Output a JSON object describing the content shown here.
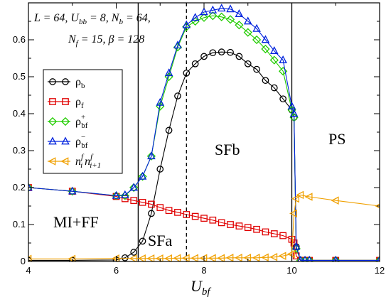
{
  "chart_data": {
    "type": "line",
    "xlabel": {
      "base": "U",
      "sub": "bf"
    },
    "xlim": [
      4,
      12
    ],
    "ylim": [
      0,
      0.7
    ],
    "xticks": [
      4,
      6,
      8,
      10,
      12
    ],
    "yticks": [
      0,
      0.1,
      0.2,
      0.3,
      0.4,
      0.5,
      0.6
    ],
    "annotation": {
      "line1": "L = 64, U",
      "line1_sub": "bb",
      "line1_b": " = 8, N",
      "line1_sub2": "b",
      "line1_c": " = 64,",
      "line2": "N",
      "line2_sub": "f",
      "line2_b": " = 15, β = 128"
    },
    "regions": [
      {
        "label": "MI+FF"
      },
      {
        "label": "SFa"
      },
      {
        "label": "SFb"
      },
      {
        "label": "PS"
      }
    ],
    "boundaries": [
      {
        "x": 6.5,
        "style": "solid"
      },
      {
        "x": 7.6,
        "style": "dashed"
      },
      {
        "x": 10.0,
        "style": "solid"
      }
    ],
    "legend_position": "left-middle",
    "series": [
      {
        "key": "rho_b",
        "name": "ρ",
        "name_sub": "b",
        "color": "#000000",
        "marker": "circle",
        "x": [
          4,
          5,
          6,
          6.2,
          6.4,
          6.6,
          6.8,
          7.0,
          7.2,
          7.4,
          7.6,
          7.8,
          8.0,
          8.2,
          8.4,
          8.6,
          8.8,
          9.0,
          9.2,
          9.4,
          9.6,
          9.8,
          10.0,
          10.05,
          10.1,
          10.2,
          10.3,
          10.4,
          11,
          12
        ],
        "y": [
          0.003,
          0.003,
          0.004,
          0.01,
          0.025,
          0.055,
          0.13,
          0.25,
          0.355,
          0.448,
          0.51,
          0.535,
          0.555,
          0.565,
          0.567,
          0.566,
          0.555,
          0.535,
          0.52,
          0.49,
          0.47,
          0.44,
          0.41,
          0.39,
          0.04,
          0.003,
          0.003,
          0.003,
          0.003,
          0.003
        ]
      },
      {
        "key": "rho_f",
        "name": "ρ",
        "name_sub": "f",
        "color": "#e00000",
        "marker": "square",
        "x": [
          4,
          5,
          6,
          6.2,
          6.4,
          6.6,
          6.8,
          7.0,
          7.2,
          7.4,
          7.6,
          7.8,
          8.0,
          8.2,
          8.4,
          8.6,
          8.8,
          9.0,
          9.2,
          9.4,
          9.6,
          9.8,
          10.0,
          10.05,
          10.1,
          10.2,
          10.3,
          10.4,
          11,
          12
        ],
        "y": [
          0.2,
          0.19,
          0.176,
          0.17,
          0.165,
          0.16,
          0.155,
          0.146,
          0.138,
          0.133,
          0.127,
          0.122,
          0.117,
          0.112,
          0.105,
          0.1,
          0.096,
          0.092,
          0.087,
          0.08,
          0.075,
          0.07,
          0.06,
          0.05,
          0.015,
          0.003,
          0.003,
          0.003,
          0.003,
          0.003
        ]
      },
      {
        "key": "rho_bf_plus",
        "name": "ρ",
        "name_sup": "+",
        "name_sub": "bf",
        "color": "#22cc00",
        "marker": "diamond",
        "x": [
          4,
          5,
          6,
          6.2,
          6.4,
          6.6,
          6.8,
          7.0,
          7.2,
          7.4,
          7.6,
          7.8,
          8.0,
          8.2,
          8.4,
          8.6,
          8.8,
          9.0,
          9.2,
          9.4,
          9.6,
          9.8,
          10.0,
          10.05,
          10.1,
          10.2,
          10.3,
          10.4,
          11,
          12
        ],
        "y": [
          0.2,
          0.19,
          0.178,
          0.178,
          0.2,
          0.23,
          0.285,
          0.42,
          0.5,
          0.58,
          0.635,
          0.65,
          0.66,
          0.665,
          0.662,
          0.655,
          0.64,
          0.62,
          0.6,
          0.575,
          0.545,
          0.515,
          0.41,
          0.39,
          0.035,
          0.003,
          0.003,
          0.003,
          0.003,
          0.003
        ]
      },
      {
        "key": "rho_bf_minus",
        "name": "ρ",
        "name_sup": "−",
        "name_sub": "bf",
        "color": "#0022dd",
        "marker": "triangle-up",
        "x": [
          4,
          5,
          6,
          6.2,
          6.4,
          6.6,
          6.8,
          7.0,
          7.2,
          7.4,
          7.6,
          7.8,
          8.0,
          8.2,
          8.4,
          8.6,
          8.8,
          9.0,
          9.2,
          9.4,
          9.6,
          9.8,
          10.0,
          10.05,
          10.1,
          10.2,
          10.3,
          10.4,
          11,
          12
        ],
        "y": [
          0.2,
          0.19,
          0.178,
          0.18,
          0.2,
          0.23,
          0.285,
          0.43,
          0.51,
          0.585,
          0.64,
          0.66,
          0.675,
          0.68,
          0.685,
          0.683,
          0.67,
          0.65,
          0.63,
          0.6,
          0.57,
          0.545,
          0.42,
          0.4,
          0.04,
          0.003,
          0.003,
          0.003,
          0.003,
          0.003
        ]
      },
      {
        "key": "nn",
        "name": "n",
        "name_sup": "f",
        "name_sub": "i",
        "name2": "n",
        "name2_sup": "f",
        "name2_sub": "i+1",
        "color": "#f0a000",
        "marker": "triangle-left",
        "x": [
          4,
          5,
          6,
          6.4,
          6.6,
          6.8,
          7.0,
          7.2,
          7.4,
          7.6,
          7.8,
          8.0,
          8.2,
          8.4,
          8.6,
          8.8,
          9.0,
          9.2,
          9.4,
          9.6,
          9.8,
          10.0,
          10.05,
          10.1,
          10.2,
          10.4,
          11,
          12
        ],
        "y": [
          0.007,
          0.007,
          0.008,
          0.008,
          0.008,
          0.008,
          0.008,
          0.008,
          0.009,
          0.009,
          0.009,
          0.009,
          0.009,
          0.009,
          0.01,
          0.01,
          0.01,
          0.01,
          0.011,
          0.012,
          0.015,
          0.02,
          0.13,
          0.17,
          0.18,
          0.175,
          0.165,
          0.15
        ]
      }
    ]
  }
}
